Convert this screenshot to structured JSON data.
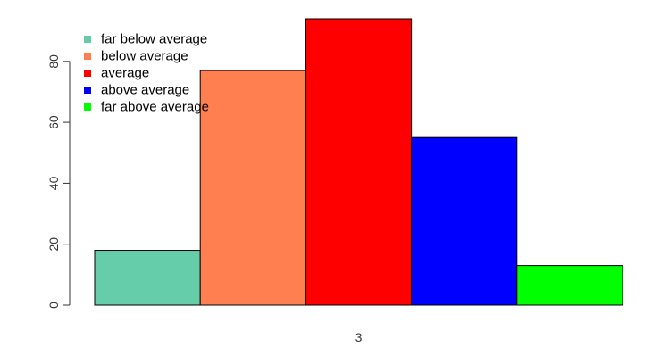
{
  "chart_data": {
    "type": "bar",
    "title": "",
    "xlabel": "",
    "ylabel": "",
    "categories": [
      "3"
    ],
    "series": [
      {
        "name": "far below average",
        "values": [
          18
        ],
        "color": "#66CDAA"
      },
      {
        "name": "below average",
        "values": [
          77
        ],
        "color": "#FF7F50"
      },
      {
        "name": "average",
        "values": [
          94
        ],
        "color": "#FF0000"
      },
      {
        "name": "above average",
        "values": [
          55
        ],
        "color": "#0000FF"
      },
      {
        "name": "far above average",
        "values": [
          13
        ],
        "color": "#00FF00"
      }
    ],
    "ylim": [
      0,
      94
    ],
    "yticks": [
      0,
      20,
      40,
      60,
      80
    ],
    "grid": false,
    "legend": {
      "position": "top-left"
    }
  }
}
